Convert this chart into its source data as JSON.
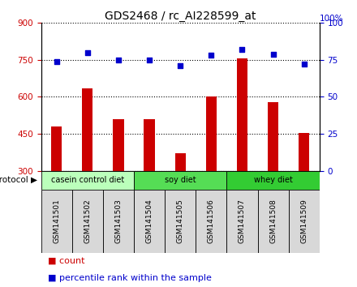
{
  "title": "GDS2468 / rc_AI228599_at",
  "samples": [
    "GSM141501",
    "GSM141502",
    "GSM141503",
    "GSM141504",
    "GSM141505",
    "GSM141506",
    "GSM141507",
    "GSM141508",
    "GSM141509"
  ],
  "counts": [
    480,
    635,
    510,
    510,
    370,
    600,
    755,
    580,
    455
  ],
  "percentiles": [
    74,
    80,
    75,
    75,
    71,
    78,
    82,
    79,
    72
  ],
  "ylim_left": [
    300,
    900
  ],
  "ylim_right": [
    0,
    100
  ],
  "yticks_left": [
    300,
    450,
    600,
    750,
    900
  ],
  "yticks_right": [
    0,
    25,
    50,
    75,
    100
  ],
  "bar_color": "#cc0000",
  "dot_color": "#0000cc",
  "tick_color_left": "#cc0000",
  "tick_color_right": "#0000cc",
  "title_fontsize": 10,
  "bar_width": 0.35,
  "groups": [
    {
      "label": "casein control diet",
      "start": 0,
      "end": 3,
      "color": "#bbffbb"
    },
    {
      "label": "soy diet",
      "start": 3,
      "end": 6,
      "color": "#55dd55"
    },
    {
      "label": "whey diet",
      "start": 6,
      "end": 9,
      "color": "#33cc33"
    }
  ],
  "protocol_label": "protocol",
  "legend_count_label": "count",
  "legend_pct_label": "percentile rank within the sample"
}
